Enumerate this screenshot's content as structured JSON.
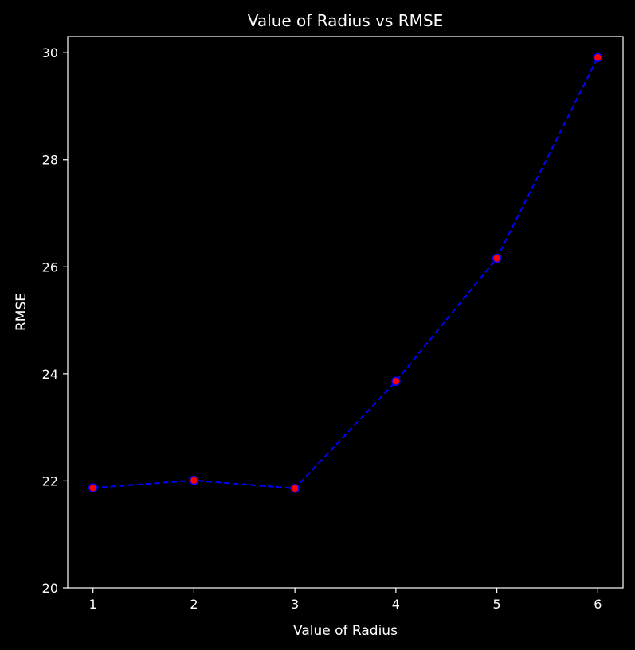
{
  "chart_data": {
    "type": "line",
    "title": "Value of Radius vs RMSE",
    "xlabel": "Value of Radius",
    "ylabel": "RMSE",
    "x": [
      1,
      2,
      3,
      4,
      5,
      6
    ],
    "y": [
      21.87,
      22.01,
      21.86,
      23.86,
      26.16,
      29.91
    ],
    "xlim": [
      0.75,
      6.25
    ],
    "ylim": [
      20,
      30.3
    ],
    "xticks": [
      "1",
      "2",
      "3",
      "4",
      "5",
      "6"
    ],
    "yticks": [
      "20",
      "22",
      "24",
      "26",
      "28",
      "30"
    ],
    "grid": false,
    "line_color": "#0000ff",
    "line_style": "dashed",
    "marker_face_color": "#ff0000",
    "marker_edge_color": "#0000ff",
    "background_color": "#000000",
    "text_color": "#ffffff"
  }
}
